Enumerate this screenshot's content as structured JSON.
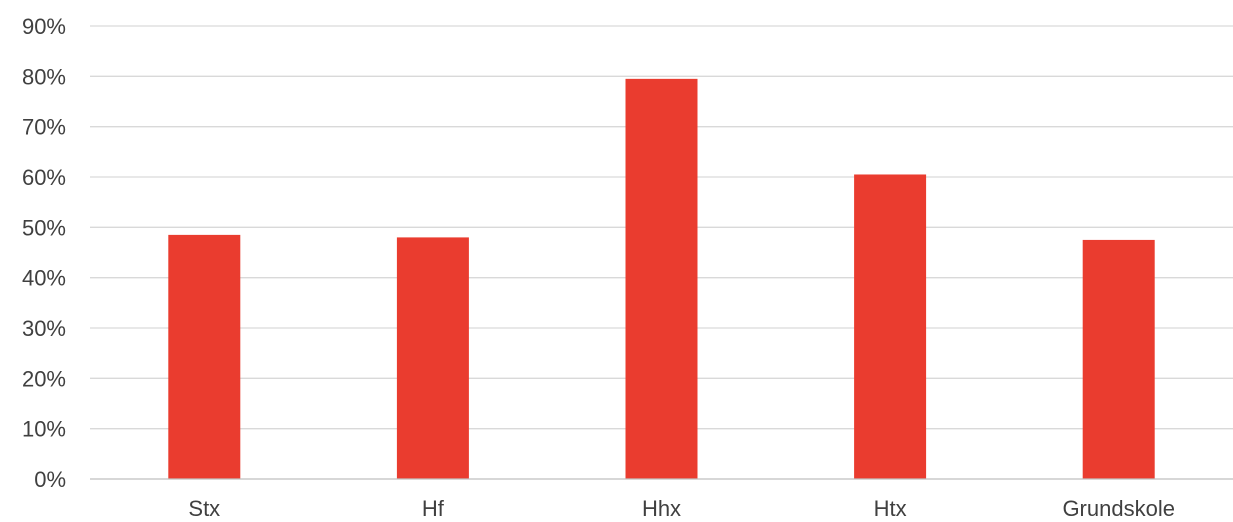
{
  "chart_data": {
    "type": "bar",
    "categories": [
      "Stx",
      "Hf",
      "Hhx",
      "Htx",
      "Grundskole"
    ],
    "values": [
      48.5,
      48,
      79.5,
      60.5,
      47.5
    ],
    "unit": "%",
    "y_ticks": [
      "0%",
      "10%",
      "20%",
      "30%",
      "40%",
      "50%",
      "60%",
      "70%",
      "80%",
      "90%"
    ],
    "ylim": [
      0,
      90
    ],
    "title": "",
    "xlabel": "",
    "ylabel": "",
    "grid": true,
    "legend": "none",
    "bar_color": "#ea3c2f"
  }
}
